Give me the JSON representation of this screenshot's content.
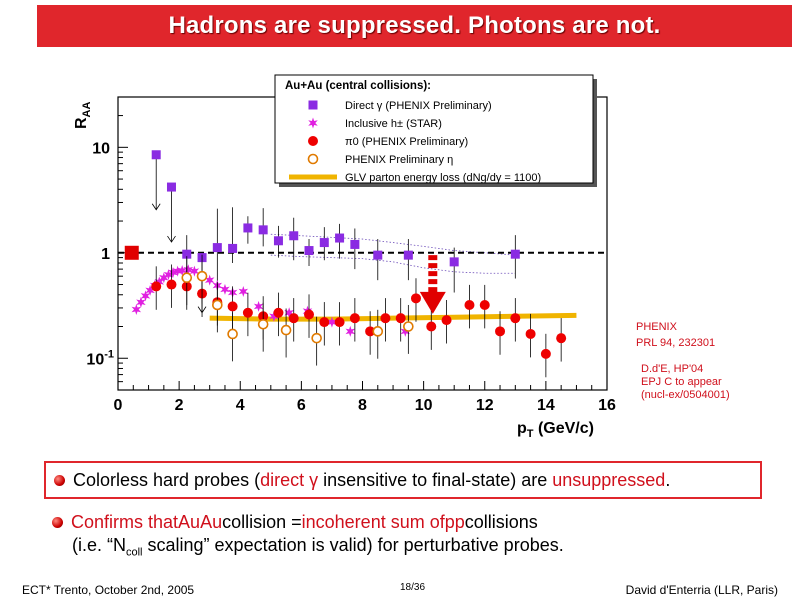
{
  "slide": {
    "title": "Hadrons are suppressed. Photons are not.",
    "title_color": "#e0262c"
  },
  "chart_data": {
    "type": "scatter",
    "xlabel_main": "p",
    "xlabel_sub": "T",
    "xlabel_units": " (GeV/c)",
    "ylabel_main": "R",
    "ylabel_sub": "AA",
    "xlim": [
      0,
      16
    ],
    "ylim": [
      0.05,
      30
    ],
    "yscale": "log",
    "x_ticks": [
      "0",
      "2",
      "4",
      "6",
      "8",
      "10",
      "12",
      "14",
      "16"
    ],
    "y_ticks": [
      {
        "v": 10,
        "label": "10"
      },
      {
        "v": 1,
        "label": "1"
      },
      {
        "v": 0.1,
        "label": "10",
        "sup": "-1"
      }
    ],
    "reference_line": 1,
    "legend": {
      "title": "Au+Au (central collisions):",
      "placement": "top-right",
      "entries": [
        {
          "label": "Direct γ (PHENIX Preliminary)",
          "marker": "square",
          "color": "#8a2be2"
        },
        {
          "label": "Inclusive h± (STAR)",
          "marker": "star",
          "color": "#e020e0"
        },
        {
          "label": "π0 (PHENIX Preliminary)",
          "marker": "circle",
          "color": "#ee0000"
        },
        {
          "label": "PHENIX Preliminary η",
          "marker": "open-circle",
          "color": "#e07a00"
        },
        {
          "label": "GLV parton energy loss (dNg/dy = 1100)",
          "marker": "band",
          "color": "#f0b400"
        }
      ]
    },
    "series": [
      {
        "name": "Direct γ (PHENIX Preliminary)",
        "marker": "square",
        "color": "#8a2be2",
        "points": [
          {
            "x": 1.25,
            "y": 8.5,
            "upper": true
          },
          {
            "x": 1.75,
            "y": 4.2,
            "upper": true
          },
          {
            "x": 2.25,
            "y": 0.97,
            "err": [
              0.3,
              0.5
            ]
          },
          {
            "x": 2.75,
            "y": 0.9,
            "upper": true
          },
          {
            "x": 3.25,
            "y": 1.12,
            "err": [
              0.6,
              1.5
            ]
          },
          {
            "x": 3.75,
            "y": 1.1,
            "err": [
              0.3,
              1.6
            ]
          },
          {
            "x": 4.25,
            "y": 1.72,
            "err": [
              0.5,
              0.5
            ]
          },
          {
            "x": 4.75,
            "y": 1.65,
            "err": [
              0.5,
              1.0
            ]
          },
          {
            "x": 5.25,
            "y": 1.3,
            "err": [
              0.4,
              0.5
            ]
          },
          {
            "x": 5.75,
            "y": 1.45,
            "err": [
              0.6,
              0.7
            ]
          },
          {
            "x": 6.25,
            "y": 1.05,
            "err": [
              0.3,
              0.3
            ]
          },
          {
            "x": 6.75,
            "y": 1.25,
            "err": [
              0.4,
              0.5
            ]
          },
          {
            "x": 7.25,
            "y": 1.38,
            "err": [
              0.5,
              0.5
            ]
          },
          {
            "x": 7.75,
            "y": 1.2,
            "err": [
              0.5,
              0.5
            ]
          },
          {
            "x": 8.5,
            "y": 0.95,
            "err": [
              0.4,
              0.4
            ]
          },
          {
            "x": 9.5,
            "y": 0.95,
            "err": [
              0.4,
              0.4
            ]
          },
          {
            "x": 11.0,
            "y": 0.82,
            "err": [
              0.4,
              0.3
            ]
          },
          {
            "x": 13.0,
            "y": 0.97,
            "err": [
              0.4,
              0.5
            ]
          }
        ]
      },
      {
        "name": "Inclusive h± (STAR)",
        "marker": "star",
        "color": "#e020e0",
        "points": [
          {
            "x": 0.6,
            "y": 0.29
          },
          {
            "x": 0.75,
            "y": 0.34
          },
          {
            "x": 0.9,
            "y": 0.39
          },
          {
            "x": 1.05,
            "y": 0.44
          },
          {
            "x": 1.2,
            "y": 0.49
          },
          {
            "x": 1.35,
            "y": 0.53
          },
          {
            "x": 1.5,
            "y": 0.58
          },
          {
            "x": 1.65,
            "y": 0.62
          },
          {
            "x": 1.8,
            "y": 0.65
          },
          {
            "x": 1.95,
            "y": 0.67
          },
          {
            "x": 2.1,
            "y": 0.68
          },
          {
            "x": 2.3,
            "y": 0.69
          },
          {
            "x": 2.5,
            "y": 0.67
          },
          {
            "x": 2.75,
            "y": 0.61
          },
          {
            "x": 3.0,
            "y": 0.55
          },
          {
            "x": 3.25,
            "y": 0.49
          },
          {
            "x": 3.5,
            "y": 0.45
          },
          {
            "x": 3.75,
            "y": 0.42
          },
          {
            "x": 4.1,
            "y": 0.43
          },
          {
            "x": 4.6,
            "y": 0.31
          },
          {
            "x": 5.1,
            "y": 0.25
          },
          {
            "x": 5.6,
            "y": 0.27
          },
          {
            "x": 6.2,
            "y": 0.28
          },
          {
            "x": 7.0,
            "y": 0.22
          },
          {
            "x": 7.6,
            "y": 0.18
          },
          {
            "x": 9.4,
            "y": 0.18
          }
        ]
      },
      {
        "name": "π0 (PHENIX Preliminary)",
        "marker": "circle",
        "color": "#ee0000",
        "points": [
          {
            "x": 1.25,
            "y": 0.48
          },
          {
            "x": 1.75,
            "y": 0.5
          },
          {
            "x": 2.25,
            "y": 0.48
          },
          {
            "x": 2.75,
            "y": 0.41
          },
          {
            "x": 3.25,
            "y": 0.34
          },
          {
            "x": 3.75,
            "y": 0.31
          },
          {
            "x": 4.25,
            "y": 0.27
          },
          {
            "x": 4.75,
            "y": 0.25
          },
          {
            "x": 5.25,
            "y": 0.27
          },
          {
            "x": 5.75,
            "y": 0.24
          },
          {
            "x": 6.25,
            "y": 0.26
          },
          {
            "x": 6.75,
            "y": 0.22
          },
          {
            "x": 7.25,
            "y": 0.22
          },
          {
            "x": 7.75,
            "y": 0.24
          },
          {
            "x": 8.25,
            "y": 0.18
          },
          {
            "x": 8.75,
            "y": 0.24
          },
          {
            "x": 9.25,
            "y": 0.24
          },
          {
            "x": 9.75,
            "y": 0.37
          },
          {
            "x": 10.25,
            "y": 0.2
          },
          {
            "x": 10.75,
            "y": 0.23
          },
          {
            "x": 11.5,
            "y": 0.32
          },
          {
            "x": 12.0,
            "y": 0.32
          },
          {
            "x": 12.5,
            "y": 0.18
          },
          {
            "x": 13.0,
            "y": 0.24
          },
          {
            "x": 13.5,
            "y": 0.17
          },
          {
            "x": 14.0,
            "y": 0.11
          },
          {
            "x": 14.5,
            "y": 0.155
          }
        ]
      },
      {
        "name": "PHENIX Preliminary η",
        "marker": "open-circle",
        "color": "#e07a00",
        "points": [
          {
            "x": 2.25,
            "y": 0.58
          },
          {
            "x": 2.75,
            "y": 0.6
          },
          {
            "x": 3.25,
            "y": 0.32
          },
          {
            "x": 3.75,
            "y": 0.17
          },
          {
            "x": 4.75,
            "y": 0.21
          },
          {
            "x": 5.5,
            "y": 0.185
          },
          {
            "x": 6.5,
            "y": 0.155
          },
          {
            "x": 8.5,
            "y": 0.18
          },
          {
            "x": 9.5,
            "y": 0.2
          }
        ]
      }
    ],
    "annotations": [
      {
        "type": "red-square",
        "x": 0.45,
        "y": 1.0,
        "color": "#e00000"
      },
      {
        "type": "red-dashed-arrow",
        "x": 10.3,
        "y_from": 0.95,
        "y_to": 0.3,
        "color": "#e00000"
      }
    ]
  },
  "references": {
    "phenix_line1": "PHENIX",
    "phenix_line2": "PRL 94, 232301",
    "dde_line1": "D.d'E, HP'04",
    "dde_line2": "EPJ C to appear",
    "dde_line3": "(nucl-ex/0504001)"
  },
  "bullets": {
    "b1_pre": "Colorless hard probes (",
    "b1_direct": "direct",
    "b1_gamma": "γ",
    "b1_mid": " insensitive to final-state) are ",
    "b1_red2": "unsuppressed",
    "b1_end": ".",
    "b2_confirms": "Confirms that ",
    "b2_auau": "AuAu",
    "b2_collision": " collision = ",
    "b2_incoh": "incoherent sum of ",
    "b2_pp": "pp",
    "b2_collisions": " collisions",
    "b3_pre": "(i.e. “N",
    "b3_sub": "coll",
    "b3_post": " scaling” expectation is valid) for perturbative probes."
  },
  "footer": {
    "left": "ECT* Trento, October 2nd, 2005",
    "page": "18/36",
    "right": "David d'Enterria (LLR, Paris)"
  }
}
